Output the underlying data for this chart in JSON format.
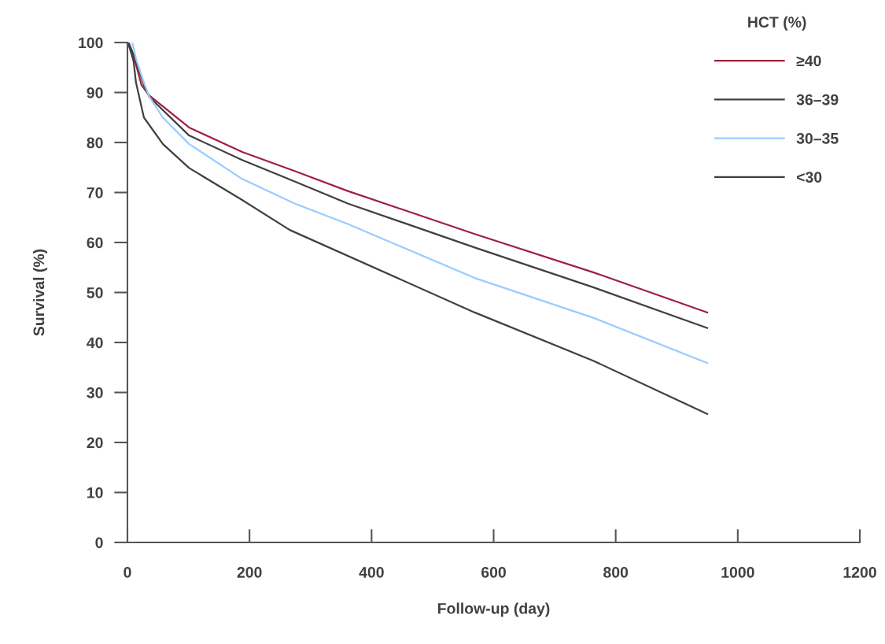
{
  "chart_data": {
    "type": "line",
    "xlabel": "Follow-up (day)",
    "ylabel": "Survival (%)",
    "legend_title": "HCT (%)",
    "legend": "top right",
    "grid": false,
    "marker": "none",
    "line_style": "solid",
    "xlim": [
      0,
      1200
    ],
    "xticks": [
      0,
      200,
      400,
      600,
      800,
      1000,
      1200
    ],
    "ylim": [
      0,
      100
    ],
    "yticks": [
      0,
      10,
      20,
      30,
      40,
      50,
      60,
      70,
      80,
      90,
      100
    ],
    "series": [
      {
        "name": "≥40",
        "color": "#a0203f",
        "x": [
          0,
          10,
          23,
          36,
          101,
          188,
          274,
          361,
          569,
          764,
          950
        ],
        "values": [
          100,
          97.4,
          91.5,
          89.4,
          83,
          78.1,
          74.3,
          70.3,
          61.7,
          54.0,
          46.0
        ]
      },
      {
        "name": "36–39",
        "color": "#404040",
        "x": [
          2,
          14,
          27,
          36,
          101,
          188,
          274,
          361,
          569,
          764,
          950
        ],
        "values": [
          100,
          96.3,
          91.5,
          89.1,
          81.4,
          76.5,
          72.2,
          67.8,
          59.0,
          51.0,
          42.9
        ]
      },
      {
        "name": "30–35",
        "color": "#99ccff",
        "x": [
          8,
          14,
          27,
          36,
          58,
          101,
          188,
          274,
          361,
          569,
          764,
          950
        ],
        "values": [
          100,
          96.8,
          92,
          89.1,
          85,
          79.7,
          72.7,
          67.8,
          63.7,
          52.9,
          44.9,
          35.9
        ]
      },
      {
        "name": "<30",
        "color": "#404040",
        "x": [
          1,
          10,
          14,
          27,
          58,
          101,
          188,
          266,
          569,
          764,
          950
        ],
        "values": [
          100,
          96.3,
          92,
          85,
          79.7,
          74.9,
          68.5,
          62.5,
          46.0,
          36.3,
          25.7
        ]
      }
    ]
  }
}
